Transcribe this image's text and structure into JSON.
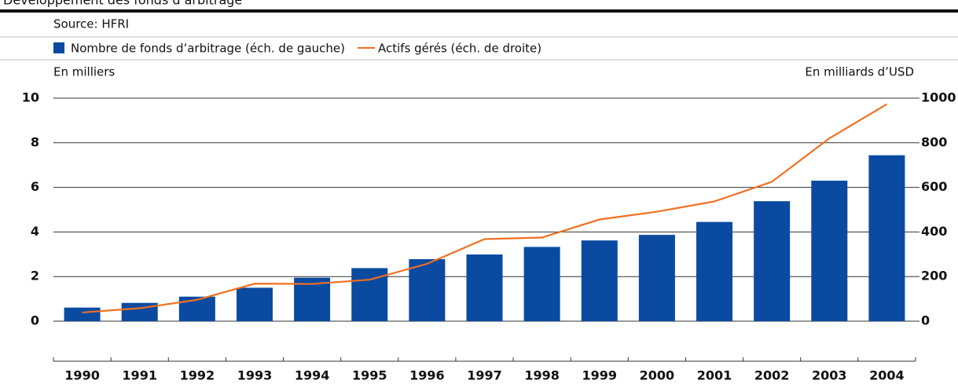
{
  "chart_data": {
    "type": "bar-line",
    "title": "Développement des fonds d’arbitrage",
    "source": "Source: HFRI",
    "y_label": "En milliers",
    "y2_label": "En milliards d’USD",
    "categories": [
      "1990",
      "1991",
      "1992",
      "1993",
      "1994",
      "1995",
      "1996",
      "1997",
      "1998",
      "1999",
      "2000",
      "2001",
      "2002",
      "2003",
      "2004"
    ],
    "series": [
      {
        "name": "Nombre de fonds d’arbitrage (éch. de gauche)",
        "type": "bar",
        "color": "#0a4aa0",
        "values": [
          0.61,
          0.82,
          1.1,
          1.5,
          1.95,
          2.38,
          2.78,
          2.99,
          3.33,
          3.62,
          3.87,
          4.45,
          5.38,
          6.3,
          7.44
        ]
      },
      {
        "name": "Actifs gérés (éch. de droite)",
        "type": "line",
        "axis": "y2",
        "color": "#f07022",
        "values": [
          39,
          58,
          96,
          168,
          167,
          186,
          257,
          368,
          375,
          456,
          491,
          537,
          625,
          820,
          973
        ]
      }
    ],
    "ylim": [
      0,
      10
    ],
    "yticks": [
      0,
      2,
      4,
      6,
      8,
      10
    ],
    "y2lim": [
      0,
      1000
    ],
    "y2ticks": [
      0,
      200,
      400,
      600,
      800,
      1000
    ],
    "grid": true
  }
}
